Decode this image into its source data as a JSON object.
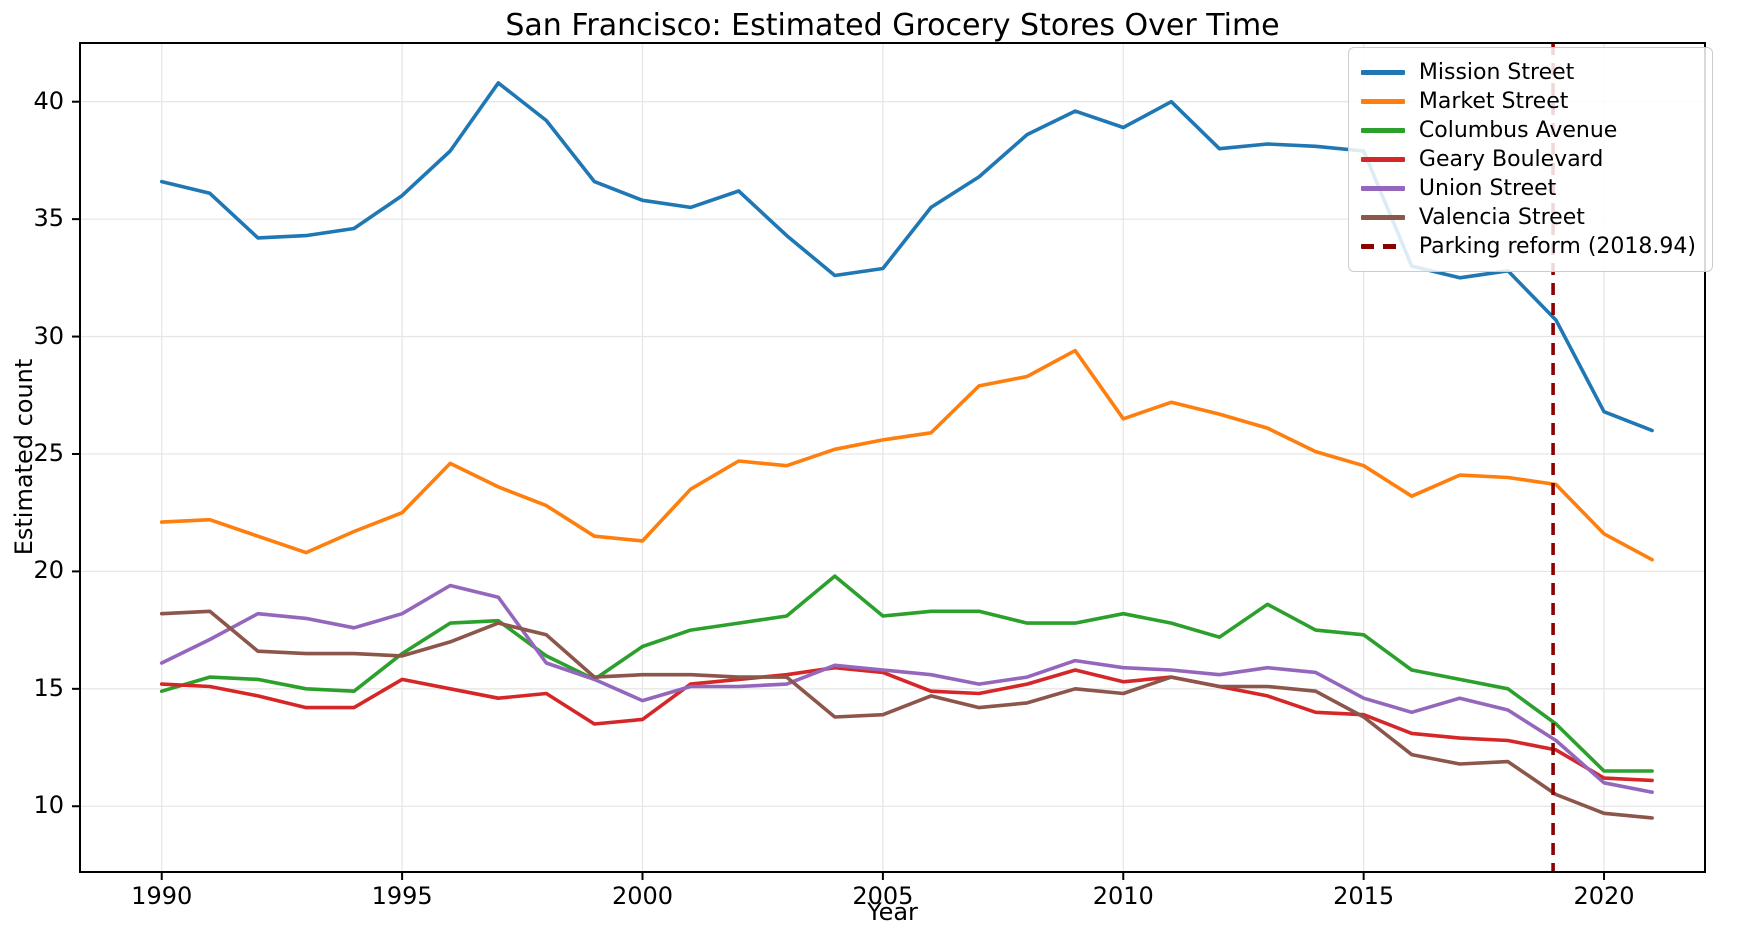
{
  "figure": {
    "background": "#ffffff"
  },
  "chart_data": {
    "type": "line",
    "title": "San Francisco: Estimated Grocery Stores Over Time",
    "xlabel": "Year",
    "ylabel": "Estimated count",
    "grid": true,
    "legend_position": "upper right",
    "xlim": [
      1988.3,
      2022.1
    ],
    "ylim": [
      7.2,
      42.5
    ],
    "x_ticks": [
      1990,
      1995,
      2000,
      2005,
      2010,
      2015,
      2020
    ],
    "y_ticks": [
      10,
      15,
      20,
      25,
      30,
      35,
      40
    ],
    "x": [
      1990,
      1991,
      1992,
      1993,
      1994,
      1995,
      1996,
      1997,
      1998,
      1999,
      2000,
      2001,
      2002,
      2003,
      2004,
      2005,
      2006,
      2007,
      2008,
      2009,
      2010,
      2011,
      2012,
      2013,
      2014,
      2015,
      2016,
      2017,
      2018,
      2019,
      2020,
      2021
    ],
    "series": [
      {
        "name": "Mission Street",
        "color": "#1f77b4",
        "values": [
          36.6,
          36.1,
          34.2,
          34.3,
          34.6,
          36.0,
          37.9,
          40.8,
          39.2,
          36.6,
          35.8,
          35.5,
          36.2,
          34.3,
          32.6,
          32.9,
          35.5,
          36.8,
          38.6,
          39.6,
          38.9,
          40.0,
          38.0,
          38.2,
          38.1,
          37.9,
          33.0,
          32.5,
          32.8,
          30.7,
          26.8,
          26.0
        ]
      },
      {
        "name": "Market Street",
        "color": "#ff7f0e",
        "values": [
          22.1,
          22.2,
          21.5,
          20.8,
          21.7,
          22.5,
          24.6,
          23.6,
          22.8,
          21.5,
          21.3,
          23.5,
          24.7,
          24.5,
          25.2,
          25.6,
          25.9,
          27.9,
          28.3,
          29.4,
          26.5,
          27.2,
          26.7,
          26.1,
          25.1,
          24.5,
          23.2,
          24.1,
          24.0,
          23.7,
          21.6,
          20.5
        ]
      },
      {
        "name": "Columbus Avenue",
        "color": "#2ca02c",
        "values": [
          14.9,
          15.5,
          15.4,
          15.0,
          14.9,
          16.5,
          17.8,
          17.9,
          16.4,
          15.4,
          16.8,
          17.5,
          17.8,
          18.1,
          19.8,
          18.1,
          18.3,
          18.3,
          17.8,
          17.8,
          18.2,
          17.8,
          17.2,
          18.6,
          17.5,
          17.3,
          15.8,
          15.4,
          15.0,
          13.5,
          11.5,
          11.5
        ]
      },
      {
        "name": "Geary Boulevard",
        "color": "#d62728",
        "values": [
          15.2,
          15.1,
          14.7,
          14.2,
          14.2,
          15.4,
          15.0,
          14.6,
          14.8,
          13.5,
          13.7,
          15.2,
          15.4,
          15.6,
          15.9,
          15.7,
          14.9,
          14.8,
          15.2,
          15.8,
          15.3,
          15.5,
          15.1,
          14.7,
          14.0,
          13.9,
          13.1,
          12.9,
          12.8,
          12.4,
          11.2,
          11.1
        ]
      },
      {
        "name": "Union Street",
        "color": "#9467bd",
        "values": [
          16.1,
          17.1,
          18.2,
          18.0,
          17.6,
          18.2,
          19.4,
          18.9,
          16.1,
          15.4,
          14.5,
          15.1,
          15.1,
          15.2,
          16.0,
          15.8,
          15.6,
          15.2,
          15.5,
          16.2,
          15.9,
          15.8,
          15.6,
          15.9,
          15.7,
          14.6,
          14.0,
          14.6,
          14.1,
          12.8,
          11.0,
          10.6
        ]
      },
      {
        "name": "Valencia Street",
        "color": "#8c564b",
        "values": [
          18.2,
          18.3,
          16.6,
          16.5,
          16.5,
          16.4,
          17.0,
          17.8,
          17.3,
          15.5,
          15.6,
          15.6,
          15.5,
          15.5,
          13.8,
          13.9,
          14.7,
          14.2,
          14.4,
          15.0,
          14.8,
          15.5,
          15.1,
          15.1,
          14.9,
          13.8,
          12.2,
          11.8,
          11.9,
          10.5,
          9.7,
          9.5
        ]
      }
    ],
    "vline": {
      "x": 2018.94,
      "label": "Parking reform (2018.94)",
      "color": "#8b0000",
      "style": "dashed"
    }
  }
}
